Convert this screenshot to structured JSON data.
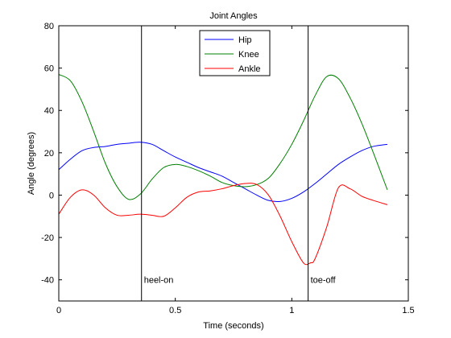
{
  "chart_data": {
    "type": "line",
    "title": "Joint Angles",
    "xlabel": "Time (seconds)",
    "ylabel": "Angle (degrees)",
    "xlim": [
      0,
      1.5
    ],
    "ylim": [
      -50,
      80
    ],
    "xticks": [
      0,
      0.5,
      1,
      1.5
    ],
    "xtick_labels": [
      "0",
      "0.5",
      "1",
      "1.5"
    ],
    "yticks": [
      -40,
      -20,
      0,
      20,
      40,
      60,
      80
    ],
    "ytick_labels": [
      "-40",
      "-20",
      "0",
      "20",
      "40",
      "60",
      "80"
    ],
    "grid": false,
    "legend_position": "top-center",
    "series": [
      {
        "name": "Hip",
        "color": "#0000ff",
        "x": [
          0,
          0.05,
          0.1,
          0.15,
          0.2,
          0.25,
          0.3,
          0.35,
          0.4,
          0.45,
          0.5,
          0.55,
          0.6,
          0.65,
          0.7,
          0.75,
          0.8,
          0.85,
          0.9,
          0.95,
          1.0,
          1.05,
          1.1,
          1.15,
          1.2,
          1.25,
          1.3,
          1.35,
          1.41
        ],
        "y": [
          12,
          17,
          21,
          22.5,
          23,
          24,
          24.5,
          25,
          24,
          21,
          18,
          15.5,
          13,
          11,
          9,
          6,
          3,
          0,
          -2.5,
          -3,
          -1.5,
          1.5,
          5.5,
          10,
          14.5,
          18,
          21,
          23,
          24
        ]
      },
      {
        "name": "Knee",
        "color": "#008000",
        "x": [
          0,
          0.05,
          0.1,
          0.15,
          0.2,
          0.25,
          0.3,
          0.35,
          0.4,
          0.45,
          0.5,
          0.55,
          0.6,
          0.65,
          0.7,
          0.75,
          0.8,
          0.85,
          0.9,
          0.95,
          1.0,
          1.05,
          1.1,
          1.15,
          1.2,
          1.25,
          1.3,
          1.35,
          1.41
        ],
        "y": [
          57,
          54,
          44,
          30,
          15,
          4,
          -2,
          0.5,
          7.5,
          13,
          14.5,
          13.5,
          11.5,
          9,
          6,
          4.5,
          4,
          5,
          8,
          15,
          24,
          35,
          47,
          56,
          55,
          46,
          34,
          20,
          2.5
        ]
      },
      {
        "name": "Ankle",
        "color": "#ff0000",
        "x": [
          0,
          0.05,
          0.1,
          0.15,
          0.2,
          0.25,
          0.3,
          0.35,
          0.4,
          0.45,
          0.5,
          0.55,
          0.6,
          0.65,
          0.7,
          0.75,
          0.8,
          0.85,
          0.9,
          0.95,
          1.0,
          1.05,
          1.08,
          1.1,
          1.15,
          1.2,
          1.25,
          1.3,
          1.35,
          1.41
        ],
        "y": [
          -9,
          -1,
          2.5,
          0,
          -6,
          -9.5,
          -9.5,
          -9,
          -9.5,
          -10,
          -6,
          -1,
          1.5,
          2,
          3,
          4.5,
          5.5,
          5,
          0,
          -10,
          -22,
          -32,
          -32,
          -30,
          -15,
          3.5,
          3,
          -0.5,
          -2.5,
          -4.5
        ]
      }
    ],
    "annotations": [
      {
        "text": "heel-on",
        "x": 0.355
      },
      {
        "text": "toe-off",
        "x": 1.07
      }
    ]
  }
}
